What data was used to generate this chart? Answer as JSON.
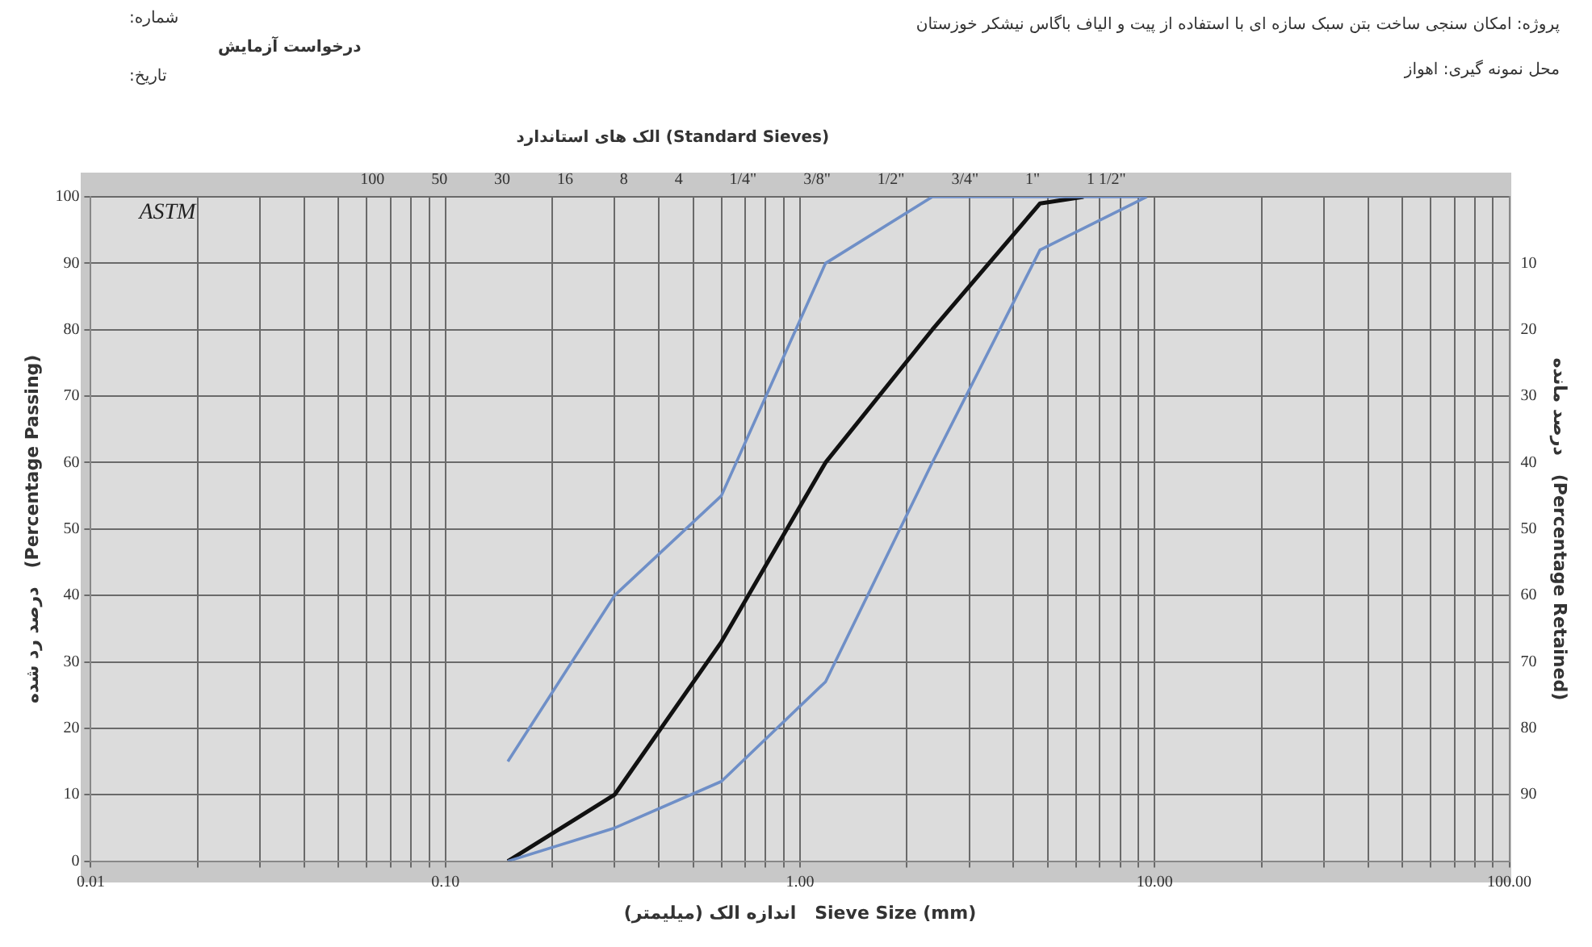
{
  "chart_data": {
    "type": "line",
    "title": "پروژه: امکان سنجی ساخت بتن سبک سازه ای با استفاده از پیت و الیاف باگاس نیشکر خوزستان",
    "xlabel": "اندازه الک (میلیمتر)   Sieve Size (mm)",
    "ylabel": "درصد رد شده   (Percentage Passing)",
    "y2label": "درصد مانده   (Percentage Retained)",
    "annotations": [
      "محل نمونه گیری: اهواز",
      "شماره:",
      "درخواست آزمایش",
      "تاریخ:",
      "ASTM",
      "الک های استاندارد   (Standard Sieves)",
      "100",
      "50",
      "30",
      "16",
      "8",
      "4",
      "1/4\"",
      "3/8\"",
      "1/2\"",
      "3/4\"",
      "1\"",
      "1 1/2\""
    ],
    "log": "x",
    "grid": true,
    "marker": "none",
    "line_style": "solid",
    "xlim": [
      0.01,
      100
    ],
    "xticks": [
      {
        "value": 0.01,
        "label": "0.01"
      },
      {
        "value": 0.02,
        "label": null
      },
      {
        "value": 0.03,
        "label": null
      },
      {
        "value": 0.04,
        "label": null
      },
      {
        "value": 0.05,
        "label": null
      },
      {
        "value": 0.06,
        "label": null
      },
      {
        "value": 0.07,
        "label": null
      },
      {
        "value": 0.08,
        "label": null
      },
      {
        "value": 0.09,
        "label": null
      },
      {
        "value": 0.1,
        "label": "0.10"
      },
      {
        "value": 0.2,
        "label": null
      },
      {
        "value": 0.3,
        "label": null
      },
      {
        "value": 0.4,
        "label": null
      },
      {
        "value": 0.5,
        "label": null
      },
      {
        "value": 0.6,
        "label": null
      },
      {
        "value": 0.7,
        "label": null
      },
      {
        "value": 0.8,
        "label": null
      },
      {
        "value": 0.9,
        "label": null
      },
      {
        "value": 1,
        "label": "1.00"
      },
      {
        "value": 2,
        "label": null
      },
      {
        "value": 3,
        "label": null
      },
      {
        "value": 4,
        "label": null
      },
      {
        "value": 5,
        "label": null
      },
      {
        "value": 6,
        "label": null
      },
      {
        "value": 7,
        "label": null
      },
      {
        "value": 8,
        "label": null
      },
      {
        "value": 9,
        "label": null
      },
      {
        "value": 10,
        "label": "10.00"
      },
      {
        "value": 20,
        "label": null
      },
      {
        "value": 30,
        "label": null
      },
      {
        "value": 40,
        "label": null
      },
      {
        "value": 50,
        "label": null
      },
      {
        "value": 60,
        "label": null
      },
      {
        "value": 70,
        "label": null
      },
      {
        "value": 80,
        "label": null
      },
      {
        "value": 90,
        "label": null
      },
      {
        "value": 100,
        "label": "100.00"
      }
    ],
    "ylim": [
      0,
      100
    ],
    "yticks": [
      0,
      10,
      20,
      30,
      40,
      50,
      60,
      70,
      80,
      90,
      100
    ],
    "y2lim": [
      100,
      0
    ],
    "y2ticks": [
      10,
      20,
      30,
      40,
      50,
      60,
      70,
      80,
      90
    ],
    "series": [
      {
        "color": "#6f8fc7",
        "x": [
          0.15,
          0.3,
          0.6,
          1.18,
          2.36,
          9.5
        ],
        "values": [
          15,
          40,
          55,
          90,
          100,
          100
        ]
      },
      {
        "color": "#6f8fc7",
        "x": [
          0.15,
          0.3,
          0.6,
          1.18,
          2.36,
          4.75,
          9.5
        ],
        "values": [
          0,
          5,
          12,
          27,
          60,
          92,
          100
        ]
      },
      {
        "color": "#111111",
        "x": [
          0.15,
          0.3,
          0.6,
          1.18,
          2.36,
          4.75,
          6.3
        ],
        "values": [
          0,
          10,
          33,
          60,
          80,
          99,
          100
        ]
      }
    ]
  }
}
